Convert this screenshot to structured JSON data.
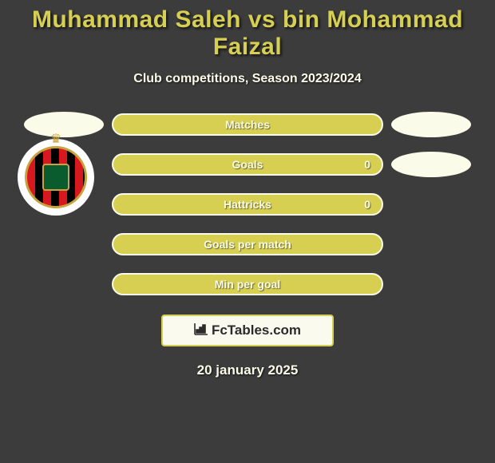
{
  "colors": {
    "page_bg": "#3c3c3c",
    "title_color": "#d6cf52",
    "subtitle_color": "#fafbe8",
    "ellipse_bg": "#fafbe8",
    "pill_bg": "#d6cf52",
    "pill_border": "#fafbe8",
    "pill_text": "#fafbe8",
    "brand_bg": "#fafaef",
    "brand_border": "#d6cf52",
    "brand_text": "#2b2b2b",
    "date_color": "#fafbe8"
  },
  "title": "Muhammad Saleh vs bin Mohammad Faizal",
  "subtitle": "Club competitions, Season 2023/2024",
  "rows": [
    {
      "label": "Matches",
      "right_value": "",
      "left_ellipse": true,
      "right_ellipse": true
    },
    {
      "label": "Goals",
      "right_value": "0",
      "left_ellipse": false,
      "right_ellipse": true
    },
    {
      "label": "Hattricks",
      "right_value": "0",
      "left_ellipse": false,
      "right_ellipse": false
    },
    {
      "label": "Goals per match",
      "right_value": "",
      "left_ellipse": false,
      "right_ellipse": false
    },
    {
      "label": "Min per goal",
      "right_value": "",
      "left_ellipse": false,
      "right_ellipse": false
    }
  ],
  "brand": {
    "icon": "📊",
    "text": "FcTables.com"
  },
  "date": "20 january 2025",
  "layout": {
    "pill_width": 340,
    "pill_height": 28,
    "pill_border_width": 2,
    "ellipse_width": 100,
    "ellipse_height": 32
  }
}
